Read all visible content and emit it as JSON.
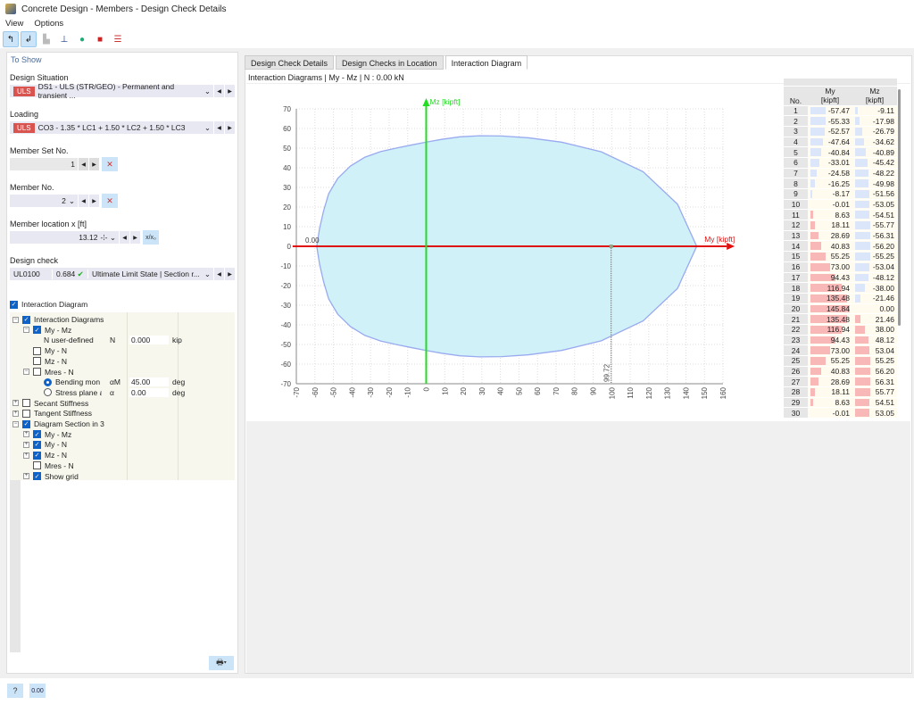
{
  "window": {
    "title": "Concrete Design - Members - Design Check Details"
  },
  "menu": [
    "View",
    "Options"
  ],
  "toolbar": [
    "select-icon",
    "select-alt-icon",
    "section-icon",
    "member-icon",
    "info-color-icon",
    "info-red-icon",
    "settings-lines-icon"
  ],
  "left": {
    "section_title": "To Show",
    "design_situation": {
      "label": "Design Situation",
      "badge": "ULS",
      "value": "DS1 - ULS (STR/GEO) - Permanent and transient ..."
    },
    "loading": {
      "label": "Loading",
      "badge": "ULS",
      "value": "CO3 - 1.35 * LC1 + 1.50 * LC2 + 1.50 * LC3"
    },
    "member_set": {
      "label": "Member Set No.",
      "value": "1"
    },
    "member": {
      "label": "Member No.",
      "value": "2"
    },
    "location": {
      "label": "Member location x [ft]",
      "value": "13.12",
      "rel_label": "x/x₀"
    },
    "design_check": {
      "label": "Design check",
      "code": "UL0100",
      "ratio": "0.684",
      "desc": "Ultimate Limit State | Section r..."
    },
    "interaction_diagram": {
      "label": "Interaction Diagram",
      "checked": true
    },
    "tree": [
      {
        "indent": 0,
        "pm": "-",
        "cb": true,
        "label": "Interaction Diagrams"
      },
      {
        "indent": 1,
        "pm": "-",
        "cb": true,
        "label": "My - Mz"
      },
      {
        "indent": 2,
        "label": "N user-defined",
        "sym": "N",
        "val": "0.000",
        "unit": "kip"
      },
      {
        "indent": 1,
        "cb": false,
        "label": "My - N"
      },
      {
        "indent": 1,
        "cb": false,
        "label": "Mz - N"
      },
      {
        "indent": 1,
        "pm": "-",
        "cb": false,
        "label": "Mres - N"
      },
      {
        "indent": 2,
        "radio": true,
        "label": "Bending mon",
        "sym": "αM",
        "val": "45.00",
        "unit": "deg"
      },
      {
        "indent": 2,
        "radio": false,
        "label": "Stress plane a",
        "sym": "α",
        "val": "0.00",
        "unit": "deg"
      },
      {
        "indent": 0,
        "pm": "+",
        "cb": false,
        "label": "Secant Stiffness"
      },
      {
        "indent": 0,
        "pm": "+",
        "cb": false,
        "label": "Tangent Stiffness"
      },
      {
        "indent": 0,
        "pm": "-",
        "cb": true,
        "label": "Diagram Section in 3"
      },
      {
        "indent": 1,
        "pm": "+",
        "cb": true,
        "label": "My - Mz"
      },
      {
        "indent": 1,
        "pm": "+",
        "cb": true,
        "label": "My - N"
      },
      {
        "indent": 1,
        "pm": "+",
        "cb": true,
        "label": "Mz - N"
      },
      {
        "indent": 1,
        "cb": false,
        "label": "Mres - N"
      },
      {
        "indent": 1,
        "pm": "+",
        "cb": true,
        "label": "Show grid"
      }
    ]
  },
  "tabs": [
    {
      "label": "Design Check Details"
    },
    {
      "label": "Design Checks in Location"
    },
    {
      "label": "Interaction Diagram",
      "active": true
    }
  ],
  "chart_header": "Interaction Diagrams | My - Mz | N : 0.00 kN",
  "chart_data": {
    "type": "area",
    "xlabel": "My [kipft]",
    "ylabel": "Mz [kipft]",
    "xlim": [
      -70,
      160
    ],
    "ylim": [
      -70,
      70
    ],
    "xticks": [
      -70,
      -60,
      -50,
      -40,
      -30,
      -20,
      -10,
      0,
      10,
      20,
      30,
      40,
      50,
      60,
      70,
      80,
      90,
      100,
      110,
      120,
      130,
      140,
      150,
      160
    ],
    "yticks": [
      70,
      60,
      50,
      40,
      30,
      20,
      10,
      0,
      -10,
      -20,
      -30,
      -40,
      -50,
      -60,
      -70
    ],
    "grid": true,
    "annotations": [
      {
        "text": "0.00",
        "x": -60,
        "y": 0
      },
      {
        "text": "99.72",
        "x": 99.72,
        "y": 0
      }
    ],
    "colors": {
      "fill": "#cff1f7",
      "outline": "#99aaf0",
      "x_axis": "#e01010",
      "y_axis": "#22dd22"
    },
    "table": {
      "headers": [
        "No.",
        "My\n[kipft]",
        "Mz\n[kipft]"
      ],
      "My": [
        -57.47,
        -55.33,
        -52.57,
        -47.64,
        -40.84,
        -33.01,
        -24.58,
        -16.25,
        -8.17,
        -0.01,
        8.63,
        18.11,
        28.69,
        40.83,
        55.25,
        73.0,
        94.43,
        116.94,
        135.48,
        145.84,
        135.48,
        116.94,
        94.43,
        73.0,
        55.25,
        40.83,
        28.69,
        18.11,
        8.63,
        -0.01
      ],
      "Mz": [
        -9.11,
        -17.98,
        -26.79,
        -34.62,
        -40.89,
        -45.42,
        -48.22,
        -49.98,
        -51.56,
        -53.05,
        -54.51,
        -55.77,
        -56.31,
        -56.2,
        -55.25,
        -53.04,
        -48.12,
        -38.0,
        -21.46,
        0.0,
        21.46,
        38.0,
        48.12,
        53.04,
        55.25,
        56.2,
        56.31,
        55.77,
        54.51,
        53.05
      ]
    }
  },
  "status": [
    "help-icon",
    "decimal-icon"
  ]
}
